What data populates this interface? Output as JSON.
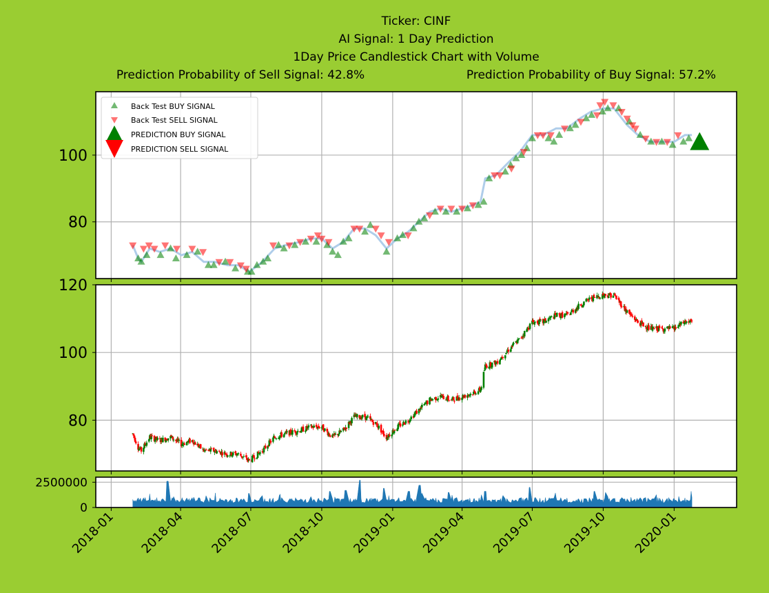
{
  "title": {
    "line1": "Ticker: CINF",
    "line2": "AI Signal: 1 Day Prediction",
    "line3": "1Day Price Candlestick Chart with Volume",
    "sell_prob": "Prediction Probability of Sell Signal: 42.8%",
    "buy_prob": "Prediction Probability of Buy Signal: 57.2%"
  },
  "colors": {
    "background": "#9acd32",
    "buy": "#008000",
    "sell": "#ff0000",
    "line": "#a6c8e8",
    "volume": "#1f77b4",
    "grid": "#b0b0b0"
  },
  "chart_data": [
    {
      "type": "scatter",
      "panel": "signals",
      "ylim": [
        63,
        119
      ],
      "yticks": [
        "80",
        "100"
      ],
      "legend": {
        "placement": "top-left",
        "entries": [
          "Back Test BUY SIGNAL",
          "Back Test SELL SIGNAL",
          "PREDICTION BUY SIGNAL",
          "PREDICTION SELL SIGNAL"
        ]
      },
      "price_path": [
        [
          "2018-01-29",
          73
        ],
        [
          "2018-02-05",
          69
        ],
        [
          "2018-02-09",
          68
        ],
        [
          "2018-02-20",
          72
        ],
        [
          "2018-03-05",
          71
        ],
        [
          "2018-03-19",
          72
        ],
        [
          "2018-04-02",
          70
        ],
        [
          "2018-04-16",
          71
        ],
        [
          "2018-05-01",
          68
        ],
        [
          "2018-05-15",
          68
        ],
        [
          "2018-06-01",
          67
        ],
        [
          "2018-06-15",
          67
        ],
        [
          "2018-06-29",
          65
        ],
        [
          "2018-07-16",
          68
        ],
        [
          "2018-08-01",
          72
        ],
        [
          "2018-08-15",
          73
        ],
        [
          "2018-09-03",
          74
        ],
        [
          "2018-09-17",
          75
        ],
        [
          "2018-10-01",
          75
        ],
        [
          "2018-10-15",
          72
        ],
        [
          "2018-10-29",
          74
        ],
        [
          "2018-11-12",
          78
        ],
        [
          "2018-11-26",
          78
        ],
        [
          "2018-12-10",
          76
        ],
        [
          "2018-12-24",
          72
        ],
        [
          "2019-01-07",
          75
        ],
        [
          "2019-01-21",
          77
        ],
        [
          "2019-02-04",
          80
        ],
        [
          "2019-02-18",
          83
        ],
        [
          "2019-03-04",
          84
        ],
        [
          "2019-03-18",
          83
        ],
        [
          "2019-04-01",
          84
        ],
        [
          "2019-04-15",
          85
        ],
        [
          "2019-04-25",
          86
        ],
        [
          "2019-05-01",
          93
        ],
        [
          "2019-05-15",
          94
        ],
        [
          "2019-06-01",
          98
        ],
        [
          "2019-06-15",
          101
        ],
        [
          "2019-07-01",
          106
        ],
        [
          "2019-07-15",
          106
        ],
        [
          "2019-08-01",
          108
        ],
        [
          "2019-08-15",
          108
        ],
        [
          "2019-09-01",
          111
        ],
        [
          "2019-09-15",
          113
        ],
        [
          "2019-10-01",
          114
        ],
        [
          "2019-10-15",
          114
        ],
        [
          "2019-11-01",
          109
        ],
        [
          "2019-11-15",
          106
        ],
        [
          "2019-12-01",
          104
        ],
        [
          "2019-12-15",
          104
        ],
        [
          "2020-01-01",
          104
        ],
        [
          "2020-01-15",
          106
        ],
        [
          "2020-01-24",
          106
        ]
      ],
      "buy_signals": [
        [
          "2018-02-05",
          69
        ],
        [
          "2018-02-09",
          68
        ],
        [
          "2018-02-16",
          70
        ],
        [
          "2018-03-06",
          70
        ],
        [
          "2018-03-19",
          72
        ],
        [
          "2018-03-26",
          69
        ],
        [
          "2018-04-09",
          70
        ],
        [
          "2018-04-23",
          71
        ],
        [
          "2018-05-07",
          67
        ],
        [
          "2018-05-14",
          67
        ],
        [
          "2018-05-29",
          68
        ],
        [
          "2018-06-11",
          66
        ],
        [
          "2018-06-27",
          65
        ],
        [
          "2018-07-02",
          65
        ],
        [
          "2018-07-09",
          67
        ],
        [
          "2018-07-17",
          68
        ],
        [
          "2018-07-23",
          69
        ],
        [
          "2018-08-06",
          73
        ],
        [
          "2018-08-13",
          72
        ],
        [
          "2018-08-27",
          73
        ],
        [
          "2018-09-10",
          74
        ],
        [
          "2018-09-24",
          74
        ],
        [
          "2018-10-08",
          73
        ],
        [
          "2018-10-15",
          71
        ],
        [
          "2018-10-22",
          70
        ],
        [
          "2018-10-29",
          74
        ],
        [
          "2018-11-05",
          75
        ],
        [
          "2018-11-26",
          77
        ],
        [
          "2018-12-03",
          79
        ],
        [
          "2018-12-24",
          71
        ],
        [
          "2019-01-07",
          75
        ],
        [
          "2019-01-14",
          76
        ],
        [
          "2019-01-28",
          78
        ],
        [
          "2019-02-04",
          80
        ],
        [
          "2019-02-11",
          81
        ],
        [
          "2019-02-25",
          83
        ],
        [
          "2019-03-11",
          83
        ],
        [
          "2019-03-25",
          83
        ],
        [
          "2019-04-08",
          84
        ],
        [
          "2019-04-22",
          85
        ],
        [
          "2019-04-29",
          86
        ],
        [
          "2019-05-06",
          93
        ],
        [
          "2019-05-27",
          95
        ],
        [
          "2019-06-03",
          97
        ],
        [
          "2019-06-10",
          99
        ],
        [
          "2019-06-17",
          100
        ],
        [
          "2019-06-24",
          102
        ],
        [
          "2019-07-01",
          105
        ],
        [
          "2019-07-22",
          105
        ],
        [
          "2019-07-29",
          104
        ],
        [
          "2019-08-05",
          106
        ],
        [
          "2019-08-19",
          108
        ],
        [
          "2019-08-26",
          109
        ],
        [
          "2019-09-09",
          111
        ],
        [
          "2019-09-16",
          112
        ],
        [
          "2019-09-30",
          113
        ],
        [
          "2019-10-07",
          114
        ],
        [
          "2019-10-21",
          114
        ],
        [
          "2019-11-04",
          110
        ],
        [
          "2019-11-18",
          106
        ],
        [
          "2019-12-02",
          104
        ],
        [
          "2019-12-16",
          104
        ],
        [
          "2019-12-30",
          103
        ],
        [
          "2020-01-13",
          104
        ],
        [
          "2020-01-20",
          105
        ]
      ],
      "sell_signals": [
        [
          "2018-01-29",
          73
        ],
        [
          "2018-02-12",
          72
        ],
        [
          "2018-02-19",
          73
        ],
        [
          "2018-02-26",
          72
        ],
        [
          "2018-03-12",
          73
        ],
        [
          "2018-03-27",
          72
        ],
        [
          "2018-04-16",
          72
        ],
        [
          "2018-04-30",
          71
        ],
        [
          "2018-05-21",
          68
        ],
        [
          "2018-06-04",
          68
        ],
        [
          "2018-06-18",
          67
        ],
        [
          "2018-06-25",
          66
        ],
        [
          "2018-07-30",
          73
        ],
        [
          "2018-08-20",
          73
        ],
        [
          "2018-09-03",
          74
        ],
        [
          "2018-09-17",
          75
        ],
        [
          "2018-09-26",
          76
        ],
        [
          "2018-10-01",
          75
        ],
        [
          "2018-10-10",
          74
        ],
        [
          "2018-11-12",
          78
        ],
        [
          "2018-11-19",
          78
        ],
        [
          "2018-12-10",
          78
        ],
        [
          "2018-12-17",
          76
        ],
        [
          "2018-12-27",
          74
        ],
        [
          "2019-01-21",
          76
        ],
        [
          "2019-02-18",
          82
        ],
        [
          "2019-03-04",
          84
        ],
        [
          "2019-03-18",
          84
        ],
        [
          "2019-04-01",
          84
        ],
        [
          "2019-04-15",
          85
        ],
        [
          "2019-05-13",
          94
        ],
        [
          "2019-05-20",
          94
        ],
        [
          "2019-06-04",
          96
        ],
        [
          "2019-06-20",
          101
        ],
        [
          "2019-07-08",
          106
        ],
        [
          "2019-07-15",
          106
        ],
        [
          "2019-07-25",
          106
        ],
        [
          "2019-08-12",
          108
        ],
        [
          "2019-09-02",
          110
        ],
        [
          "2019-09-23",
          112
        ],
        [
          "2019-09-27",
          115
        ],
        [
          "2019-10-03",
          116
        ],
        [
          "2019-10-14",
          115
        ],
        [
          "2019-10-25",
          113
        ],
        [
          "2019-11-01",
          111
        ],
        [
          "2019-11-08",
          109
        ],
        [
          "2019-11-12",
          108
        ],
        [
          "2019-11-25",
          105
        ],
        [
          "2019-12-09",
          104
        ],
        [
          "2019-12-23",
          104
        ],
        [
          "2020-01-06",
          106
        ]
      ],
      "prediction_buy": [
        [
          "2020-02-03",
          104
        ]
      ]
    },
    {
      "type": "candlestick",
      "panel": "price",
      "ylim": [
        65,
        120
      ],
      "yticks": [
        "80",
        "100",
        "120"
      ],
      "ohlc_source": "daily",
      "color_up": "#008000",
      "color_down": "#ff0000"
    },
    {
      "type": "area",
      "panel": "volume",
      "ylim": [
        0,
        3000000
      ],
      "yticks": [
        "0",
        "2500000"
      ],
      "volume_peaks": [
        [
          "2018-03-15",
          2600000
        ],
        [
          "2018-06-29",
          1400000
        ],
        [
          "2018-10-12",
          1600000
        ],
        [
          "2018-11-01",
          1700000
        ],
        [
          "2018-11-19",
          2700000
        ],
        [
          "2018-12-21",
          1900000
        ],
        [
          "2019-01-22",
          1600000
        ],
        [
          "2019-02-05",
          2200000
        ],
        [
          "2019-03-15",
          1500000
        ],
        [
          "2019-05-01",
          1600000
        ],
        [
          "2019-06-28",
          2000000
        ],
        [
          "2019-09-20",
          1600000
        ]
      ]
    }
  ],
  "x_axis": {
    "ticks": [
      "2018-01",
      "2018-04",
      "2018-07",
      "2018-10",
      "2019-01",
      "2019-04",
      "2019-07",
      "2019-10",
      "2020-01"
    ]
  }
}
